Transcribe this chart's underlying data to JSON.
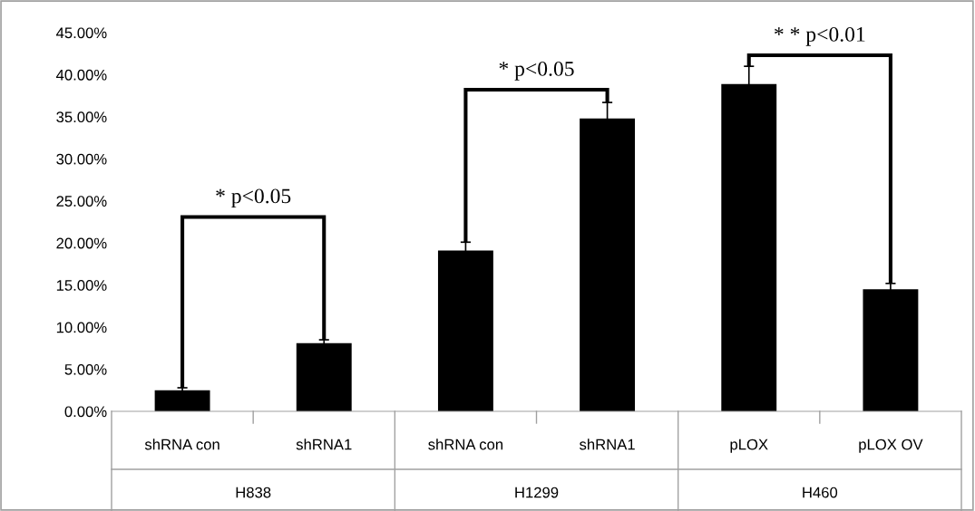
{
  "chart_data": {
    "type": "bar",
    "categories": [
      "shRNA con",
      "shRNA1",
      "shRNA con",
      "shRNA1",
      "pLOX",
      "pLOX OV"
    ],
    "values": [
      2.5,
      8.1,
      19.1,
      34.8,
      38.9,
      14.5
    ],
    "errors": [
      0.3,
      0.4,
      1.0,
      1.9,
      2.1,
      0.7
    ],
    "color": "#000000",
    "ylim": [
      0,
      45
    ],
    "yticks": [
      {
        "value": 0,
        "label": "0.00%"
      },
      {
        "value": 5,
        "label": "5.00%"
      },
      {
        "value": 10,
        "label": "10.00%"
      },
      {
        "value": 15,
        "label": "15.00%"
      },
      {
        "value": 20,
        "label": "20.00%"
      },
      {
        "value": 25,
        "label": "25.00%"
      },
      {
        "value": 30,
        "label": "30.00%"
      },
      {
        "value": 35,
        "label": "35.00%"
      },
      {
        "value": 40,
        "label": "40.00%"
      },
      {
        "value": 45,
        "label": "45.00%"
      }
    ],
    "grid": false,
    "annotations": [
      "* p<0.05",
      "* p<0.05",
      "* * p<0.01",
      "H838",
      "H1299",
      "H460"
    ]
  }
}
